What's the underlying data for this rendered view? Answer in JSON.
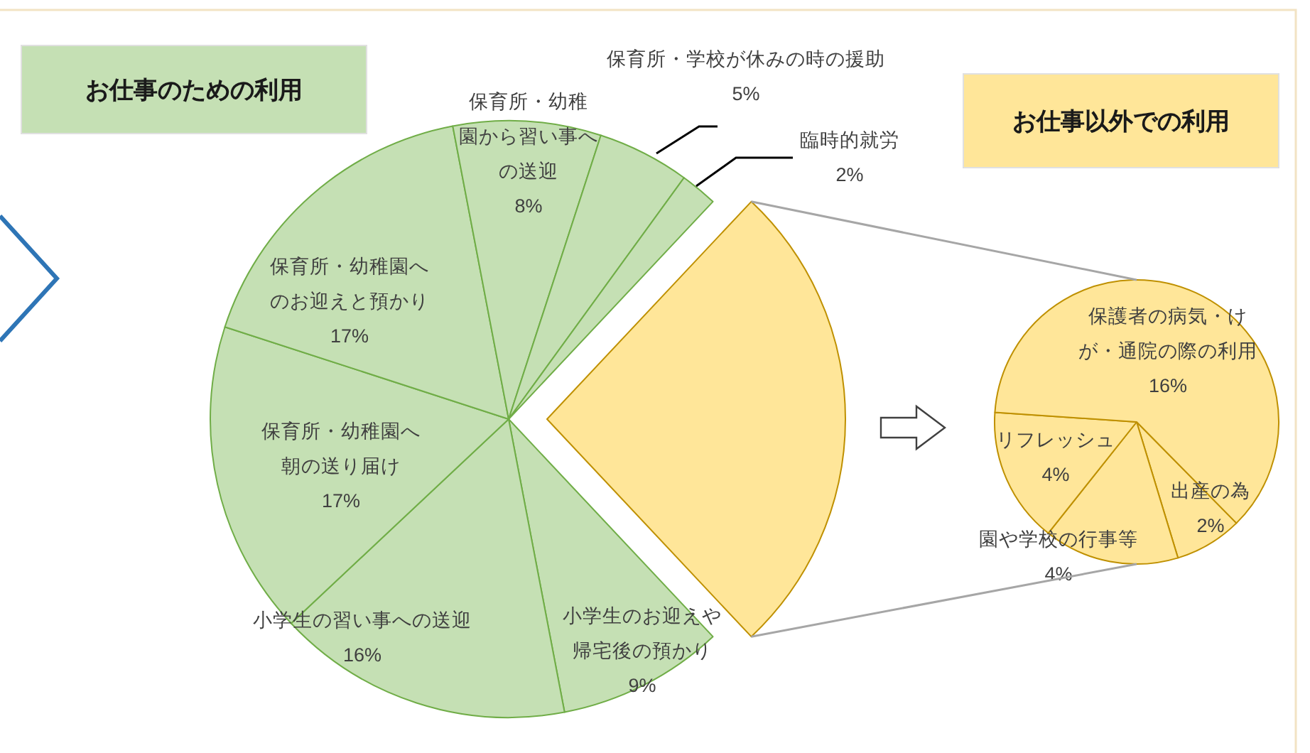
{
  "chart_data": [
    {
      "type": "pie",
      "title": "お仕事のための利用",
      "categories": [
        null,
        "小学生のお迎えや帰宅後の預かり",
        "小学生の習い事への送迎",
        "保育所・幼稚園へ朝の送り届け",
        "保育所・幼稚園へのお迎えと預かり",
        "保育所・幼稚園から習い事への送迎",
        "保育所・学校が休みの時の援助",
        "臨時的就労"
      ],
      "values": [
        26,
        9,
        16,
        17,
        17,
        8,
        5,
        2
      ],
      "value_labels": [
        null,
        "9%",
        "16%",
        "17%",
        "17%",
        "8%",
        "5%",
        "2%"
      ],
      "colors": [
        "#ffe699",
        "#c5e0b4",
        "#c5e0b4",
        "#c5e0b4",
        "#c5e0b4",
        "#c5e0b4",
        "#c5e0b4",
        "#c5e0b4"
      ]
    },
    {
      "type": "pie",
      "title": "お仕事以外での利用",
      "categories": [
        "出産の為",
        "園や学校の行事等",
        "リフレッシュ",
        "保護者の病気・けが・通院の際の利用"
      ],
      "values": [
        2,
        4,
        4,
        16
      ],
      "value_labels": [
        "2%",
        "4%",
        "4%",
        "16%"
      ],
      "colors": [
        "#ffe699",
        "#ffe699",
        "#ffe699",
        "#ffe699"
      ]
    }
  ]
}
